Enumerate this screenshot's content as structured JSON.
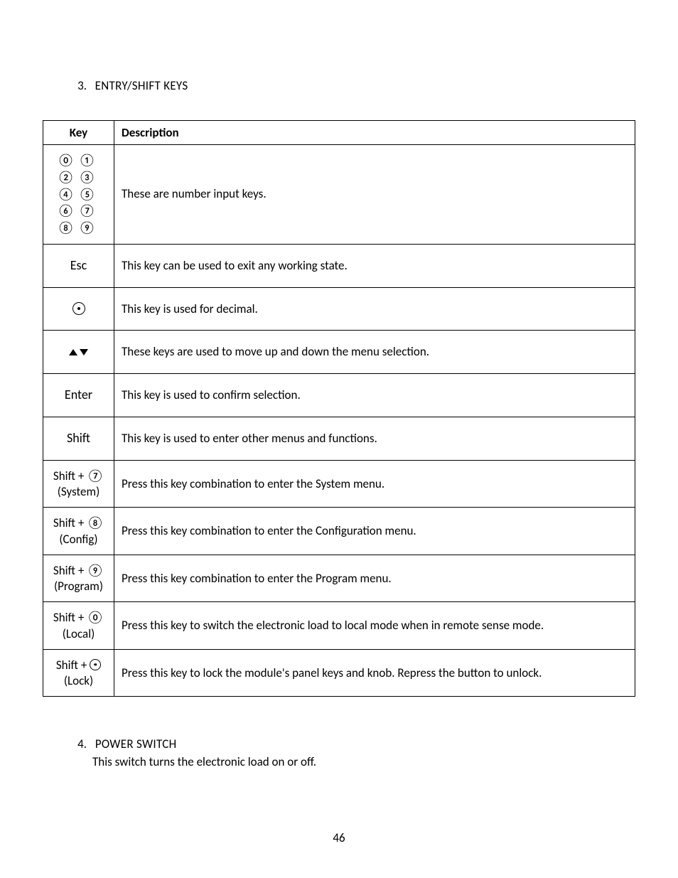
{
  "section3": {
    "number": "3.",
    "title": "ENTRY/SHIFT KEYS"
  },
  "table": {
    "headers": {
      "key": "Key",
      "desc": "Description"
    },
    "rows": {
      "r0": {
        "desc": "These are number input keys."
      },
      "r1": {
        "key": "Esc",
        "desc": "This key can be used to exit any working state."
      },
      "r2": {
        "desc": "This key is used for decimal."
      },
      "r3": {
        "desc": "These keys are used to move up and down the menu selection."
      },
      "r4": {
        "key": "Enter",
        "desc": "This key is used to confirm selection."
      },
      "r5": {
        "key": "Shift",
        "desc": "This key is used to enter other menus and functions."
      },
      "r6": {
        "key_prefix": "Shift + ",
        "key_digit": "⑦",
        "key_sub": "(System)",
        "desc": "Press this key combination to enter the System menu."
      },
      "r7": {
        "key_prefix": "Shift + ",
        "key_digit": "⑧",
        "key_sub": "(Config)",
        "desc": "Press this key combination to enter the Configuration menu."
      },
      "r8": {
        "key_prefix": "Shift + ",
        "key_digit": "⑨",
        "key_sub": "(Program)",
        "desc": "Press this key combination to enter the Program menu."
      },
      "r9": {
        "key_prefix": "Shift + ",
        "key_digit": "⓪",
        "key_sub": "(Local)",
        "desc": "Press this key to switch the electronic load to local mode when in remote sense mode."
      },
      "r10": {
        "key_prefix": "Shift + ",
        "key_sub": "(Lock)",
        "desc": "Press this key to lock the module's panel keys and knob. Repress the button to unlock."
      }
    }
  },
  "digits": {
    "d0": "⓪",
    "d1": "①",
    "d2": "②",
    "d3": "③",
    "d4": "④",
    "d5": "⑤",
    "d6": "⑥",
    "d7": "⑦",
    "d8": "⑧",
    "d9": "⑨"
  },
  "section4": {
    "number": "4.",
    "title": "POWER SWITCH",
    "body": "This switch turns the electronic load on or off."
  },
  "page_number": "46"
}
